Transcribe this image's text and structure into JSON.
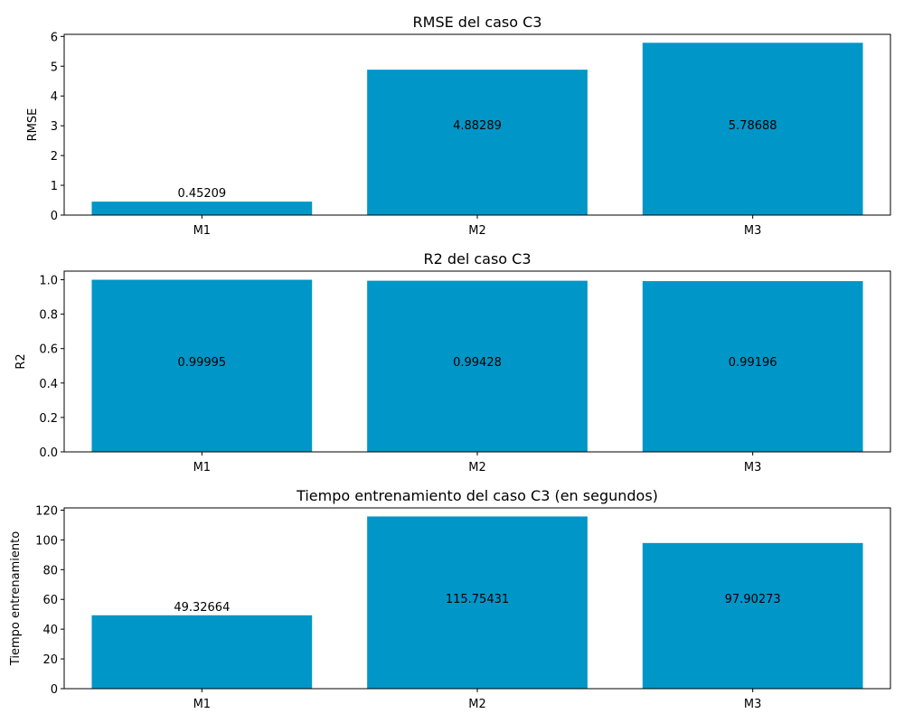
{
  "chart_data": [
    {
      "type": "bar",
      "title": "RMSE del caso C3",
      "xlabel": "",
      "ylabel": "RMSE",
      "categories": [
        "M1",
        "M2",
        "M3"
      ],
      "values": [
        0.45209,
        4.88289,
        5.78688
      ],
      "value_labels": [
        "0.45209",
        "4.88289",
        "5.78688"
      ],
      "ylim": [
        0,
        6.07
      ],
      "yticks": [
        0,
        1,
        2,
        3,
        4,
        5,
        6
      ],
      "ytick_labels": [
        "0",
        "1",
        "2",
        "3",
        "4",
        "5",
        "6"
      ],
      "bar_color": "#0096c8",
      "grid": false
    },
    {
      "type": "bar",
      "title": "R2 del caso C3",
      "xlabel": "",
      "ylabel": "R2",
      "categories": [
        "M1",
        "M2",
        "M3"
      ],
      "values": [
        0.99995,
        0.99428,
        0.99196
      ],
      "value_labels": [
        "0.99995",
        "0.99428",
        "0.99196"
      ],
      "ylim": [
        0,
        1.05
      ],
      "yticks": [
        0.0,
        0.2,
        0.4,
        0.6,
        0.8,
        1.0
      ],
      "ytick_labels": [
        "0.0",
        "0.2",
        "0.4",
        "0.6",
        "0.8",
        "1.0"
      ],
      "bar_color": "#0096c8",
      "grid": false
    },
    {
      "type": "bar",
      "title": "Tiempo entrenamiento del caso C3 (en segundos)",
      "xlabel": "",
      "ylabel": "Tiempo entrenamiento",
      "categories": [
        "M1",
        "M2",
        "M3"
      ],
      "values": [
        49.32664,
        115.75431,
        97.90273
      ],
      "value_labels": [
        "49.32664",
        "115.75431",
        "97.90273"
      ],
      "ylim": [
        0,
        121.5
      ],
      "yticks": [
        0,
        20,
        40,
        60,
        80,
        100,
        120
      ],
      "ytick_labels": [
        "0",
        "20",
        "40",
        "60",
        "80",
        "100",
        "120"
      ],
      "bar_color": "#0096c8",
      "grid": false
    }
  ]
}
